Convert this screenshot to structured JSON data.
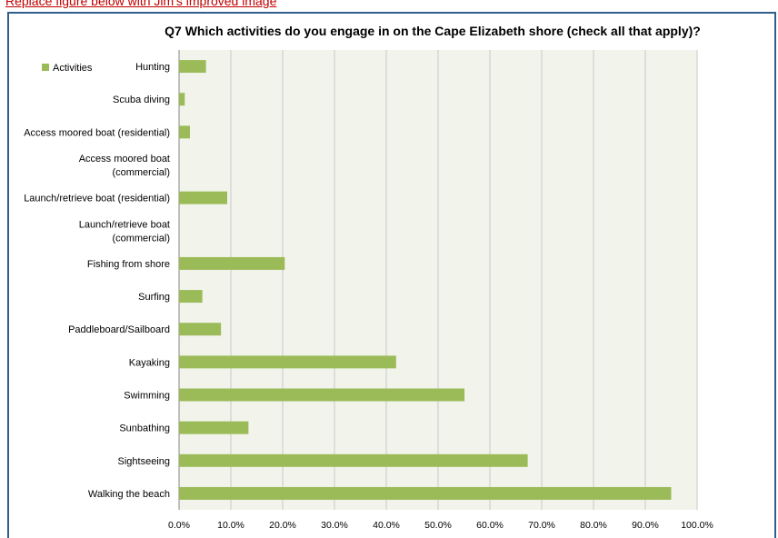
{
  "top_note": "Replace figure below with Jim's improved image",
  "chart_data": {
    "type": "bar",
    "orientation": "horizontal",
    "title": "Q7 Which activities do you engage in on the Cape Elizabeth shore (check all that apply)?",
    "xlabel": "",
    "ylabel": "",
    "categories": [
      "Hunting",
      "Scuba diving",
      "Access moored boat (residential)",
      "Access moored boat (commercial)",
      "Launch/retrieve boat (residential)",
      "Launch/retrieve boat (commercial)",
      "Fishing from shore",
      "Surfing",
      "Paddleboard/Sailboard",
      "Kayaking",
      "Swimming",
      "Sunbathing",
      "Sightseeing",
      "Walking the beach"
    ],
    "category_lines": [
      [
        "Hunting"
      ],
      [
        "Scuba diving"
      ],
      [
        "Access moored boat (residential)"
      ],
      [
        "Access moored boat",
        "(commercial)"
      ],
      [
        "Launch/retrieve boat (residential)"
      ],
      [
        "Launch/retrieve boat",
        "(commercial)"
      ],
      [
        "Fishing from shore"
      ],
      [
        "Surfing"
      ],
      [
        "Paddleboard/Sailboard"
      ],
      [
        "Kayaking"
      ],
      [
        "Swimming"
      ],
      [
        "Sunbathing"
      ],
      [
        "Sightseeing"
      ],
      [
        "Walking the beach"
      ]
    ],
    "series": [
      {
        "name": "Activities",
        "color": "#9bbb59",
        "values": [
          5.2,
          1.1,
          2.1,
          0,
          9.3,
          0,
          20.4,
          4.5,
          8.1,
          41.9,
          55.1,
          13.4,
          67.3,
          95.0
        ]
      }
    ],
    "xlim": [
      0,
      100
    ],
    "xticks": [
      "0.0%",
      "10.0%",
      "20.0%",
      "30.0%",
      "40.0%",
      "50.0%",
      "60.0%",
      "70.0%",
      "80.0%",
      "90.0%",
      "100.0%"
    ],
    "grid": true,
    "plot_background": "#f2f4ec",
    "gridline_color": "#c8c8c8",
    "legend_position": "top-left"
  }
}
